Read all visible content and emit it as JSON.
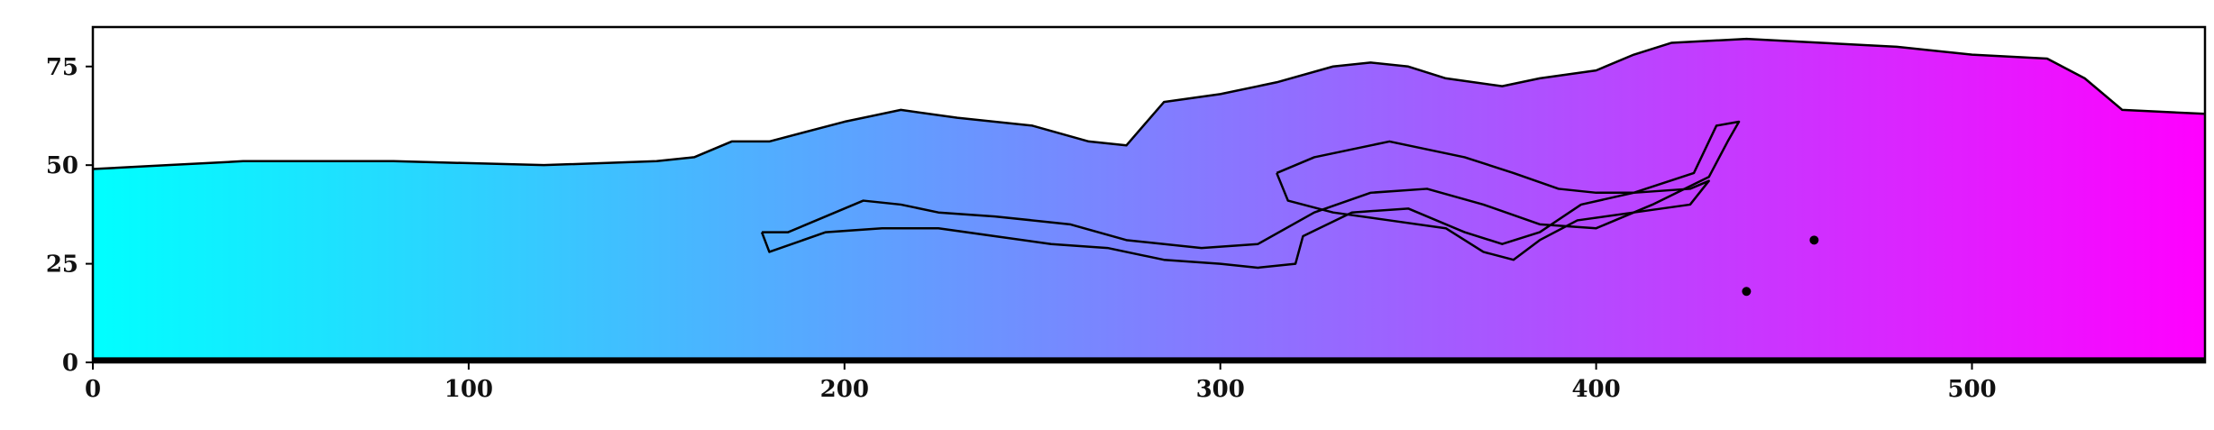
{
  "chart_data": {
    "type": "heatmap",
    "title": "",
    "xlabel": "",
    "ylabel": "",
    "xlim": [
      0,
      562
    ],
    "ylim": [
      0,
      85
    ],
    "grid": false,
    "colormap": {
      "low": "#00ffff",
      "high": "#ff00ff"
    },
    "x_ticks": [
      0,
      100,
      200,
      300,
      400,
      500
    ],
    "y_ticks": [
      0,
      25,
      50,
      75
    ],
    "outline_color": "#000000",
    "filled_region": {
      "name": "",
      "top_boundary": [
        [
          0,
          49
        ],
        [
          20,
          50
        ],
        [
          40,
          51
        ],
        [
          80,
          51
        ],
        [
          120,
          50
        ],
        [
          150,
          51
        ],
        [
          160,
          52
        ],
        [
          170,
          56
        ],
        [
          180,
          56
        ],
        [
          200,
          61
        ],
        [
          215,
          64
        ],
        [
          230,
          62
        ],
        [
          250,
          60
        ],
        [
          265,
          56
        ],
        [
          275,
          55
        ],
        [
          285,
          66
        ],
        [
          300,
          68
        ],
        [
          315,
          71
        ],
        [
          330,
          75
        ],
        [
          340,
          76
        ],
        [
          350,
          75
        ],
        [
          360,
          72
        ],
        [
          375,
          70
        ],
        [
          385,
          72
        ],
        [
          400,
          74
        ],
        [
          410,
          78
        ],
        [
          420,
          81
        ],
        [
          440,
          82
        ],
        [
          460,
          81
        ],
        [
          480,
          80
        ],
        [
          500,
          78
        ],
        [
          520,
          77
        ],
        [
          530,
          72
        ],
        [
          540,
          64
        ],
        [
          562,
          63
        ]
      ]
    },
    "contours": [
      {
        "name": "",
        "points": [
          [
            178,
            33
          ],
          [
            185,
            33
          ],
          [
            195,
            37
          ],
          [
            205,
            41
          ],
          [
            215,
            40
          ],
          [
            225,
            38
          ],
          [
            240,
            37
          ],
          [
            260,
            35
          ],
          [
            275,
            31
          ],
          [
            295,
            29
          ],
          [
            310,
            30
          ],
          [
            325,
            38
          ],
          [
            340,
            43
          ],
          [
            355,
            44
          ],
          [
            370,
            40
          ],
          [
            385,
            35
          ],
          [
            400,
            34
          ],
          [
            415,
            40
          ],
          [
            430,
            47
          ],
          [
            435,
            56
          ],
          [
            438,
            61
          ],
          [
            432,
            60
          ],
          [
            426,
            48
          ],
          [
            410,
            43
          ],
          [
            396,
            40
          ],
          [
            385,
            33
          ],
          [
            375,
            30
          ],
          [
            365,
            33
          ],
          [
            350,
            39
          ],
          [
            335,
            38
          ],
          [
            322,
            32
          ],
          [
            320,
            25
          ],
          [
            310,
            24
          ],
          [
            300,
            25
          ],
          [
            285,
            26
          ],
          [
            270,
            29
          ],
          [
            255,
            30
          ],
          [
            240,
            32
          ],
          [
            225,
            34
          ],
          [
            210,
            34
          ],
          [
            195,
            33
          ],
          [
            180,
            28
          ],
          [
            178,
            33
          ]
        ]
      },
      {
        "name": "",
        "points": [
          [
            315,
            48
          ],
          [
            325,
            52
          ],
          [
            335,
            54
          ],
          [
            345,
            56
          ],
          [
            355,
            54
          ],
          [
            365,
            52
          ],
          [
            378,
            48
          ],
          [
            390,
            44
          ],
          [
            400,
            43
          ],
          [
            410,
            43
          ],
          [
            425,
            44
          ],
          [
            430,
            46
          ],
          [
            425,
            40
          ],
          [
            410,
            38
          ],
          [
            395,
            36
          ],
          [
            385,
            31
          ],
          [
            378,
            26
          ],
          [
            370,
            28
          ],
          [
            360,
            34
          ],
          [
            345,
            36
          ],
          [
            330,
            38
          ],
          [
            318,
            41
          ],
          [
            315,
            48
          ]
        ]
      }
    ],
    "scattered_patches": [
      [
        440,
        18
      ],
      [
        458,
        31
      ]
    ]
  }
}
